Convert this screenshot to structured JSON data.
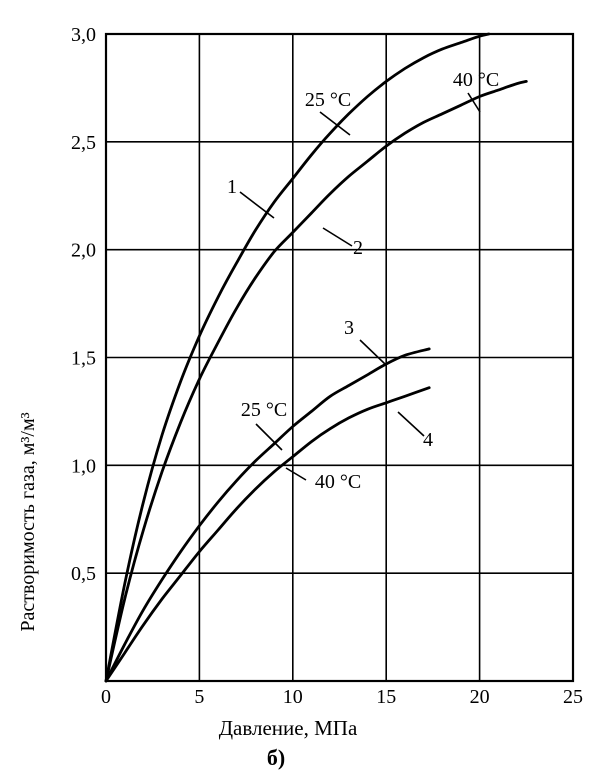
{
  "chart_data": {
    "type": "line",
    "title": "",
    "xlabel": "Давление, МПа",
    "ylabel": "Растворимость газа, м³/м³",
    "caption": "б)",
    "xlim": [
      0,
      25
    ],
    "ylim": [
      0,
      3.0
    ],
    "x_ticks": [
      "0",
      "5",
      "10",
      "15",
      "20",
      "25"
    ],
    "y_ticks": [
      "0,5",
      "1,0",
      "1,5",
      "2,0",
      "2,5",
      "3,0"
    ],
    "grid": true,
    "series": [
      {
        "name": "1",
        "x": [
          0,
          1,
          2,
          3,
          4,
          5,
          6,
          7,
          8,
          9,
          10,
          11,
          12,
          13,
          14,
          15,
          16,
          17,
          18,
          19,
          20,
          20.5
        ],
        "y": [
          0,
          0.45,
          0.83,
          1.14,
          1.39,
          1.6,
          1.78,
          1.94,
          2.09,
          2.22,
          2.33,
          2.44,
          2.54,
          2.63,
          2.71,
          2.78,
          2.84,
          2.89,
          2.93,
          2.96,
          2.99,
          3.0
        ]
      },
      {
        "name": "2",
        "x": [
          0,
          1,
          2,
          3,
          4,
          5,
          6,
          7,
          8,
          9,
          10,
          11,
          12,
          13,
          14,
          15,
          16,
          17,
          18,
          19,
          20,
          21,
          22,
          22.5
        ],
        "y": [
          0,
          0.38,
          0.7,
          0.97,
          1.2,
          1.4,
          1.57,
          1.73,
          1.87,
          1.99,
          2.08,
          2.17,
          2.26,
          2.34,
          2.41,
          2.48,
          2.54,
          2.59,
          2.63,
          2.67,
          2.71,
          2.74,
          2.77,
          2.78
        ]
      },
      {
        "name": "3",
        "x": [
          0,
          1,
          2,
          3,
          4,
          5,
          6,
          7,
          8,
          9,
          10,
          11,
          12,
          13,
          14,
          15,
          16,
          17.3
        ],
        "y": [
          0,
          0.17,
          0.33,
          0.47,
          0.6,
          0.72,
          0.83,
          0.93,
          1.02,
          1.1,
          1.18,
          1.25,
          1.32,
          1.37,
          1.42,
          1.47,
          1.51,
          1.54
        ]
      },
      {
        "name": "4",
        "x": [
          0,
          1,
          2,
          3,
          4,
          5,
          6,
          7,
          8,
          9,
          10,
          11,
          12,
          13,
          14,
          15,
          16,
          17.3
        ],
        "y": [
          0,
          0.13,
          0.26,
          0.38,
          0.49,
          0.6,
          0.7,
          0.8,
          0.89,
          0.97,
          1.04,
          1.11,
          1.17,
          1.22,
          1.26,
          1.29,
          1.32,
          1.36
        ]
      }
    ],
    "annotations": [
      {
        "name": "1",
        "text": "1"
      },
      {
        "name": "2",
        "text": "2"
      },
      {
        "name": "3",
        "text": "3"
      },
      {
        "name": "4",
        "text": "4"
      },
      {
        "name": "temp-25-upper",
        "text": "25 °C"
      },
      {
        "name": "temp-40-upper",
        "text": "40 °C"
      },
      {
        "name": "temp-25-lower",
        "text": "25 °C"
      },
      {
        "name": "temp-40-lower",
        "text": "40 °C"
      }
    ]
  }
}
